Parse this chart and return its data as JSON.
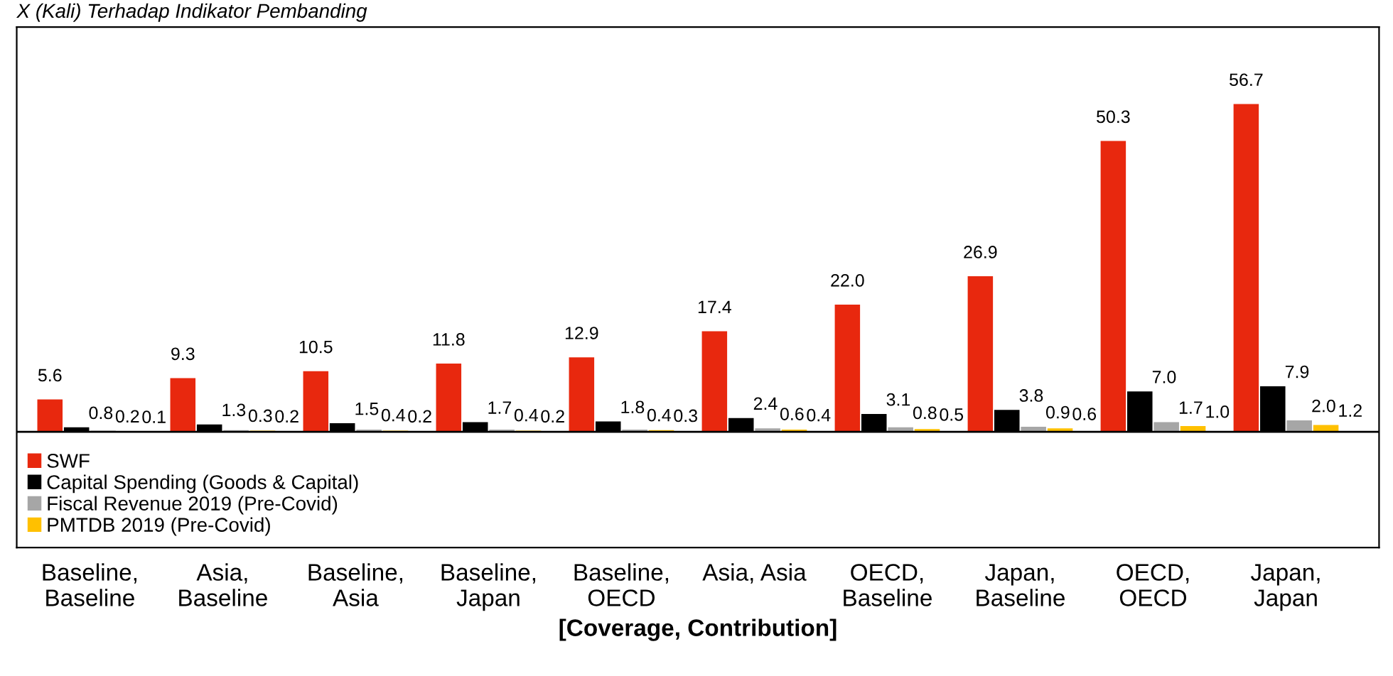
{
  "chart_data": {
    "type": "bar",
    "title": "X (Kali) Terhadap Indikator Pembanding",
    "xlabel": "[Coverage, Contribution]",
    "categories": [
      "Baseline,\nBaseline",
      "Asia,\nBaseline",
      "Baseline,\nAsia",
      "Baseline,\nJapan",
      "Baseline,\nOECD",
      "Asia, Asia",
      "OECD,\nBaseline",
      "Japan,\nBaseline",
      "OECD,\nOECD",
      "Japan,\nJapan"
    ],
    "series": [
      {
        "name": "SWF",
        "color": "#e8280e",
        "values": [
          5.6,
          9.3,
          10.5,
          11.8,
          12.9,
          17.4,
          22.0,
          26.9,
          50.3,
          56.7
        ],
        "value_labels": [
          "5.6",
          "9.3",
          "10.5",
          "11.8",
          "12.9",
          "17.4",
          "22.0",
          "26.9",
          "50.3",
          "56.7"
        ]
      },
      {
        "name": "Capital Spending (Goods & Capital)",
        "color": "#000000",
        "values": [
          0.8,
          1.3,
          1.5,
          1.7,
          1.8,
          2.4,
          3.1,
          3.8,
          7.0,
          7.9
        ],
        "value_labels": [
          "0.8",
          "1.3",
          "1.5",
          "1.7",
          "1.8",
          "2.4",
          "3.1",
          "3.8",
          "7.0",
          "7.9"
        ]
      },
      {
        "name": "Fiscal Revenue 2019 (Pre-Covid)",
        "color": "#a6a6a6",
        "values": [
          0.2,
          0.3,
          0.4,
          0.4,
          0.4,
          0.6,
          0.8,
          0.9,
          1.7,
          2.0
        ],
        "value_labels": [
          "0.2",
          "0.3",
          "0.4",
          "0.4",
          "0.4",
          "0.6",
          "0.8",
          "0.9",
          "1.7",
          "2.0"
        ]
      },
      {
        "name": "PMTDB 2019 (Pre-Covid)",
        "color": "#ffc000",
        "values": [
          0.1,
          0.2,
          0.2,
          0.2,
          0.3,
          0.4,
          0.5,
          0.6,
          1.0,
          1.2
        ],
        "value_labels": [
          "0.1",
          "0.2",
          "0.2",
          "0.2",
          "0.3",
          "0.4",
          "0.5",
          "0.6",
          "1.0",
          "1.2"
        ]
      }
    ],
    "ylim": [
      -20,
      70
    ],
    "legend": "bottom left",
    "grid": false
  }
}
